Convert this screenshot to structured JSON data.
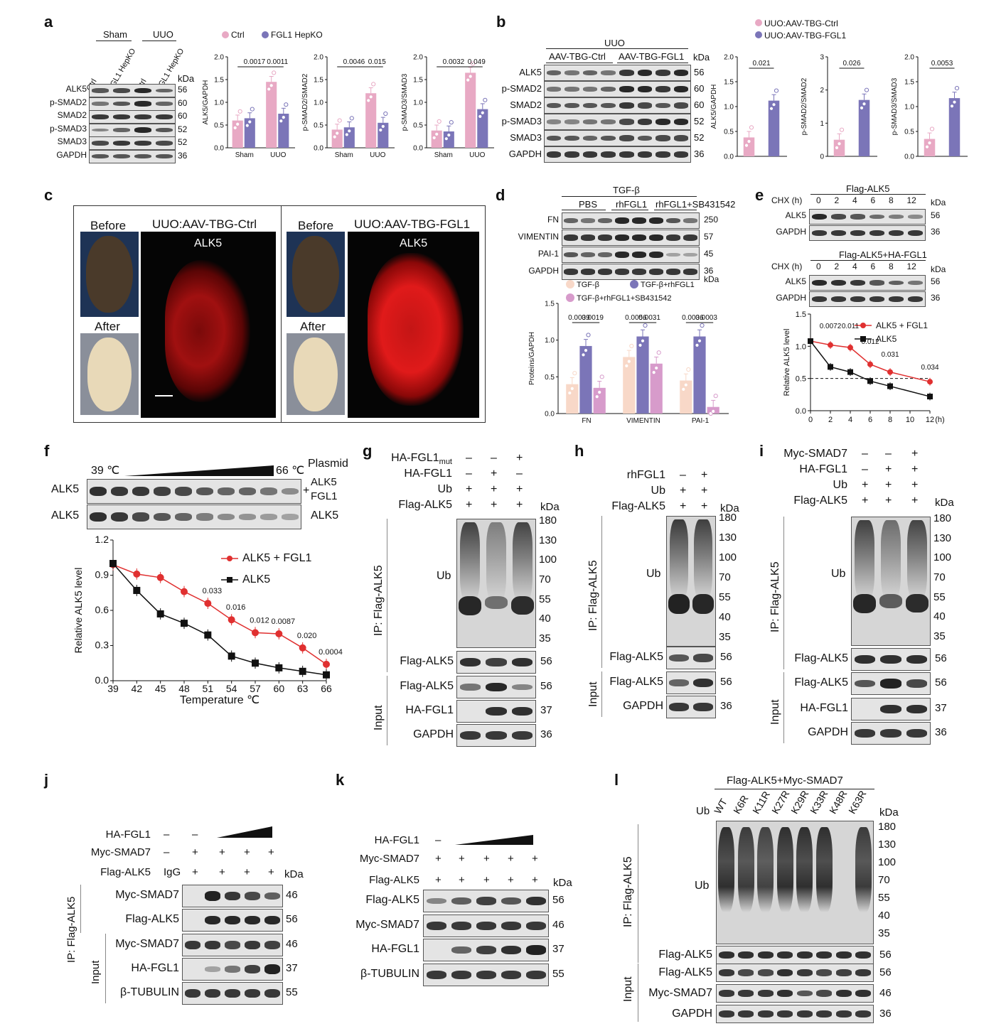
{
  "panels": {
    "a": {
      "label": "a",
      "groups": [
        "Sham",
        "UUO"
      ],
      "lanes": [
        "Ctrl",
        "FGL1 HepKO",
        "Ctrl",
        "FGL1 HepKO"
      ],
      "kda": "kDa",
      "rows": [
        {
          "name": "ALK5",
          "kda": "56"
        },
        {
          "name": "p-SMAD2",
          "kda": "60"
        },
        {
          "name": "SMAD2",
          "kda": "60"
        },
        {
          "name": "p-SMAD3",
          "kda": "52"
        },
        {
          "name": "SMAD3",
          "kda": "52"
        },
        {
          "name": "GAPDH",
          "kda": "36"
        }
      ],
      "legend": [
        "Ctrl",
        "FGL1 HepKO"
      ]
    },
    "b": {
      "label": "b",
      "group": "UUO",
      "subgroups": [
        "AAV-TBG-Ctrl",
        "AAV-TBG-FGL1"
      ],
      "kda": "kDa",
      "rows": [
        {
          "name": "ALK5",
          "kda": "56"
        },
        {
          "name": "p-SMAD2",
          "kda": "60"
        },
        {
          "name": "SMAD2",
          "kda": "60"
        },
        {
          "name": "p-SMAD3",
          "kda": "52"
        },
        {
          "name": "SMAD3",
          "kda": "52"
        },
        {
          "name": "GAPDH",
          "kda": "36"
        }
      ],
      "legend": [
        "UUO:AAV-TBG-Ctrl",
        "UUO:AAV-TBG-FGL1"
      ]
    },
    "c": {
      "label": "c",
      "left_title": "UUO:AAV-TBG-Ctrl",
      "right_title": "UUO:AAV-TBG-FGL1",
      "before": "Before",
      "after": "After",
      "stain": "ALK5"
    },
    "d": {
      "label": "d",
      "treatment": "TGF-β",
      "groups": [
        "PBS",
        "rhFGL1",
        "rhFGL1+SB431542"
      ],
      "rows": [
        {
          "name": "FN",
          "kda": "250"
        },
        {
          "name": "VIMENTIN",
          "kda": "57"
        },
        {
          "name": "PAI-1",
          "kda": "45"
        },
        {
          "name": "GAPDH",
          "kda": "36"
        }
      ],
      "kda": "kDa",
      "legend": [
        "TGF-β",
        "TGF-β+rhFGL1",
        "TGF-β+rhFGL1+SB431542"
      ]
    },
    "e": {
      "label": "e",
      "blot1_title": "Flag-ALK5",
      "blot2_title": "Flag-ALK5+HA-FGL1",
      "chx": "CHX (h)",
      "times": [
        "0",
        "2",
        "4",
        "6",
        "8",
        "12"
      ],
      "kda": "kDa",
      "rows": [
        {
          "name": "ALK5",
          "kda": "56"
        },
        {
          "name": "GAPDH",
          "kda": "36"
        }
      ],
      "legend": [
        "ALK5 + FGL1",
        "ALK5"
      ]
    },
    "f": {
      "label": "f",
      "temp_start": "39 ℃",
      "temp_end": "66 ℃",
      "plasmid": "Plasmid",
      "row1": "ALK5",
      "row1_right": [
        "ALK5",
        "FGL1"
      ],
      "row2": "ALK5",
      "row2_right": "ALK5",
      "legend": [
        "ALK5 + FGL1",
        "ALK5"
      ]
    },
    "g": {
      "label": "g",
      "conditions": [
        {
          "name": "HA-FGL1",
          "sub": "mut",
          "marks": [
            "–",
            "–",
            "+"
          ]
        },
        {
          "name": "HA-FGL1",
          "sub": "",
          "marks": [
            "–",
            "+",
            "–"
          ]
        },
        {
          "name": "Ub",
          "sub": "",
          "marks": [
            "+",
            "+",
            "+"
          ]
        },
        {
          "name": "Flag-ALK5",
          "sub": "",
          "marks": [
            "+",
            "+",
            "+"
          ]
        }
      ],
      "ip": "IP: Flag-ALK5",
      "input": "Input",
      "ub": "Ub",
      "kda": "kDa",
      "ladder": [
        "180",
        "130",
        "100",
        "70",
        "55",
        "40",
        "35"
      ],
      "rows": [
        {
          "name": "Flag-ALK5",
          "kda": "56"
        },
        {
          "name": "Flag-ALK5",
          "kda": "56"
        },
        {
          "name": "HA-FGL1",
          "kda": "37"
        },
        {
          "name": "GAPDH",
          "kda": "36"
        }
      ]
    },
    "h": {
      "label": "h",
      "conditions": [
        {
          "name": "rhFGL1",
          "marks": [
            "–",
            "+"
          ]
        },
        {
          "name": "Ub",
          "marks": [
            "+",
            "+"
          ]
        },
        {
          "name": "Flag-ALK5",
          "marks": [
            "+",
            "+"
          ]
        }
      ],
      "ip": "IP: Flag-ALK5",
      "input": "Input",
      "ub": "Ub",
      "kda": "kDa",
      "ladder": [
        "180",
        "130",
        "100",
        "70",
        "55",
        "40",
        "35"
      ],
      "rows": [
        {
          "name": "Flag-ALK5",
          "kda": "56"
        },
        {
          "name": "Flag-ALK5",
          "kda": "56"
        },
        {
          "name": "GAPDH",
          "kda": "36"
        }
      ]
    },
    "i": {
      "label": "i",
      "conditions": [
        {
          "name": "Myc-SMAD7",
          "marks": [
            "–",
            "–",
            "+"
          ]
        },
        {
          "name": "HA-FGL1",
          "marks": [
            "–",
            "+",
            "+"
          ]
        },
        {
          "name": "Ub",
          "marks": [
            "+",
            "+",
            "+"
          ]
        },
        {
          "name": "Flag-ALK5",
          "marks": [
            "+",
            "+",
            "+"
          ]
        }
      ],
      "ip": "IP: Flag-ALK5",
      "input": "Input",
      "ub": "Ub",
      "kda": "kDa",
      "ladder": [
        "180",
        "130",
        "100",
        "70",
        "55",
        "40",
        "35"
      ],
      "rows": [
        {
          "name": "Flag-ALK5",
          "kda": "56"
        },
        {
          "name": "Flag-ALK5",
          "kda": "56"
        },
        {
          "name": "HA-FGL1",
          "kda": "37"
        },
        {
          "name": "GAPDH",
          "kda": "36"
        }
      ]
    },
    "j": {
      "label": "j",
      "conditions": [
        {
          "name": "HA-FGL1",
          "marks": [
            "–",
            "–"
          ]
        },
        {
          "name": "Myc-SMAD7",
          "marks": [
            "–",
            "+",
            "+",
            "+",
            "+"
          ]
        },
        {
          "name": "Flag-ALK5",
          "marks": [
            "IgG",
            "+",
            "+",
            "+",
            "+"
          ]
        }
      ],
      "ip": "IP: Flag-ALK5",
      "input": "Input",
      "kda": "kDa",
      "rows": [
        {
          "name": "Myc-SMAD7",
          "kda": "46"
        },
        {
          "name": "Flag-ALK5",
          "kda": "56"
        },
        {
          "name": "Myc-SMAD7",
          "kda": "46"
        },
        {
          "name": "HA-FGL1",
          "kda": "37"
        },
        {
          "name": "β-TUBULIN",
          "kda": "55"
        }
      ]
    },
    "k": {
      "label": "k",
      "conditions": [
        {
          "name": "HA-FGL1",
          "marks": [
            "–"
          ]
        },
        {
          "name": "Myc-SMAD7",
          "marks": [
            "+",
            "+",
            "+",
            "+",
            "+"
          ]
        },
        {
          "name": "Flag-ALK5",
          "marks": [
            "+",
            "+",
            "+",
            "+",
            "+"
          ]
        }
      ],
      "kda": "kDa",
      "rows": [
        {
          "name": "Flag-ALK5",
          "kda": "56"
        },
        {
          "name": "Myc-SMAD7",
          "kda": "46"
        },
        {
          "name": "HA-FGL1",
          "kda": "37"
        },
        {
          "name": "β-TUBULIN",
          "kda": "55"
        }
      ]
    },
    "l": {
      "label": "l",
      "title": "Flag-ALK5+Myc-SMAD7",
      "ub_col": "Ub",
      "lanes": [
        "WT",
        "K6R",
        "K11R",
        "K27R",
        "K29R",
        "K33R",
        "K48R",
        "K63R"
      ],
      "ip": "IP: Flag-ALK5",
      "input": "Input",
      "ub": "Ub",
      "kda": "kDa",
      "ladder": [
        "180",
        "130",
        "100",
        "70",
        "55",
        "40",
        "35"
      ],
      "rows": [
        {
          "name": "Flag-ALK5",
          "kda": "56"
        },
        {
          "name": "Flag-ALK5",
          "kda": "56"
        },
        {
          "name": "Myc-SMAD7",
          "kda": "46"
        },
        {
          "name": "GAPDH",
          "kda": "36"
        }
      ]
    }
  },
  "chart_data": [
    {
      "id": "a1",
      "type": "bar",
      "categories": [
        "Sham",
        "UUO"
      ],
      "series": [
        {
          "name": "Ctrl",
          "values": [
            0.6,
            1.45
          ]
        },
        {
          "name": "FGL1 HepKO",
          "values": [
            0.65,
            0.75
          ]
        }
      ],
      "ylabel": "ALK5/GAPDH",
      "ylim": [
        0,
        2.0
      ],
      "yticks": [
        "0.0",
        "0.5",
        "1.0",
        "1.5",
        "2.0"
      ],
      "pvalues": [
        "0.0017",
        "0.0011"
      ],
      "colors": [
        "#e8a9c4",
        "#7b75b8"
      ]
    },
    {
      "id": "a2",
      "type": "bar",
      "categories": [
        "Sham",
        "UUO"
      ],
      "series": [
        {
          "name": "Ctrl",
          "values": [
            0.4,
            1.2
          ]
        },
        {
          "name": "FGL1 HepKO",
          "values": [
            0.45,
            0.55
          ]
        }
      ],
      "ylabel": "p-SMAD2/SMAD2",
      "ylim": [
        0,
        2.0
      ],
      "yticks": [
        "0.0",
        "0.5",
        "1.0",
        "1.5",
        "2.0"
      ],
      "pvalues": [
        "0.0046",
        "0.015"
      ],
      "colors": [
        "#e8a9c4",
        "#7b75b8"
      ]
    },
    {
      "id": "a3",
      "type": "bar",
      "categories": [
        "Sham",
        "UUO"
      ],
      "series": [
        {
          "name": "Ctrl",
          "values": [
            0.38,
            1.65
          ]
        },
        {
          "name": "FGL1 HepKO",
          "values": [
            0.36,
            0.85
          ]
        }
      ],
      "ylabel": "p-SMAD3/SMAD3",
      "ylim": [
        0,
        2.0
      ],
      "yticks": [
        "0.0",
        "0.5",
        "1.0",
        "1.5",
        "2.0"
      ],
      "pvalues": [
        "0.0032",
        "0.049"
      ],
      "colors": [
        "#e8a9c4",
        "#7b75b8"
      ]
    },
    {
      "id": "b1",
      "type": "bar",
      "categories": [
        "Ctrl",
        "FGL1"
      ],
      "values": [
        0.38,
        1.12
      ],
      "ylabel": "ALK5/GAPDH",
      "ylim": [
        0,
        2.0
      ],
      "yticks": [
        "0.0",
        "0.5",
        "1.0",
        "1.5",
        "2.0"
      ],
      "pvalues": [
        "0.021"
      ],
      "colors": [
        "#e8a9c4",
        "#7b75b8"
      ]
    },
    {
      "id": "b2",
      "type": "bar",
      "categories": [
        "Ctrl",
        "FGL1"
      ],
      "values": [
        0.5,
        1.7
      ],
      "ylabel": "p-SMAD2/SMAD2",
      "ylim": [
        0,
        3
      ],
      "yticks": [
        "0",
        "1",
        "2",
        "3"
      ],
      "pvalues": [
        "0.026"
      ],
      "colors": [
        "#e8a9c4",
        "#7b75b8"
      ]
    },
    {
      "id": "b3",
      "type": "bar",
      "categories": [
        "Ctrl",
        "FGL1"
      ],
      "values": [
        0.35,
        1.17
      ],
      "ylabel": "p-SMAD3/SMAD3",
      "ylim": [
        0,
        2.0
      ],
      "yticks": [
        "0.0",
        "0.5",
        "1.0",
        "1.5",
        "2.0"
      ],
      "pvalues": [
        "0.0053"
      ],
      "colors": [
        "#e8a9c4",
        "#7b75b8"
      ]
    },
    {
      "id": "d1",
      "type": "bar",
      "categories": [
        "FN",
        "VIMENTIN",
        "PAI-1"
      ],
      "series": [
        {
          "name": "TGF-β",
          "values": [
            0.4,
            0.77,
            0.45
          ]
        },
        {
          "name": "TGF-β+rhFGL1",
          "values": [
            0.92,
            1.05,
            1.05
          ]
        },
        {
          "name": "TGF-β+rhFGL1+SB431542",
          "values": [
            0.35,
            0.68,
            0.09
          ]
        }
      ],
      "ylabel": "Proteins/GAPDH",
      "ylim": [
        0,
        1.5
      ],
      "yticks": [
        "0.0",
        "0.5",
        "1.0",
        "1.5"
      ],
      "pvalues": [
        "0.0039",
        "0.0019",
        "0.0056",
        "0.0031",
        "0.0036",
        "0.0003"
      ],
      "colors": [
        "#f8d8c8",
        "#7b75b8",
        "#d79bcb"
      ]
    },
    {
      "id": "e1",
      "type": "line",
      "x": [
        0,
        2,
        4,
        6,
        8,
        12
      ],
      "series": [
        {
          "name": "ALK5 + FGL1",
          "values": [
            1.08,
            1.02,
            0.98,
            0.72,
            0.6,
            0.45
          ]
        },
        {
          "name": "ALK5",
          "values": [
            1.08,
            0.68,
            0.6,
            0.46,
            0.38,
            0.22
          ]
        }
      ],
      "ylabel": "Relative ALK5 level",
      "xlabel": "(h)",
      "ylim": [
        0,
        1.5
      ],
      "xlim": [
        0,
        12
      ],
      "yticks": [
        "0.0",
        "0.5",
        "1.0",
        "1.5"
      ],
      "xticks": [
        "0",
        "2",
        "4",
        "6",
        "8",
        "10",
        "12"
      ],
      "pvalues": [
        "0.0072",
        "0.011",
        "0.012",
        "0.031",
        "0.034"
      ],
      "colors": [
        "#e03030",
        "#111111"
      ]
    },
    {
      "id": "f1",
      "type": "line",
      "x": [
        39,
        42,
        45,
        48,
        51,
        54,
        57,
        60,
        63,
        66
      ],
      "series": [
        {
          "name": "ALK5 + FGL1",
          "values": [
            0.99,
            0.91,
            0.88,
            0.76,
            0.66,
            0.52,
            0.41,
            0.4,
            0.28,
            0.14
          ]
        },
        {
          "name": "ALK5",
          "values": [
            1.0,
            0.77,
            0.57,
            0.49,
            0.39,
            0.21,
            0.15,
            0.11,
            0.08,
            0.05
          ]
        }
      ],
      "ylabel": "Relative ALK5 level",
      "xlabel": "Temperature ℃",
      "ylim": [
        0,
        1.2
      ],
      "xlim": [
        39,
        66
      ],
      "yticks": [
        "0.0",
        "0.3",
        "0.6",
        "0.9",
        "1.2"
      ],
      "xticks": [
        "39",
        "42",
        "45",
        "48",
        "51",
        "54",
        "57",
        "60",
        "63",
        "66"
      ],
      "pvalues": [
        "0.033",
        "0.016",
        "0.012",
        "0.0087",
        "0.020",
        "0.0004"
      ],
      "colors": [
        "#e03030",
        "#111111"
      ]
    }
  ]
}
